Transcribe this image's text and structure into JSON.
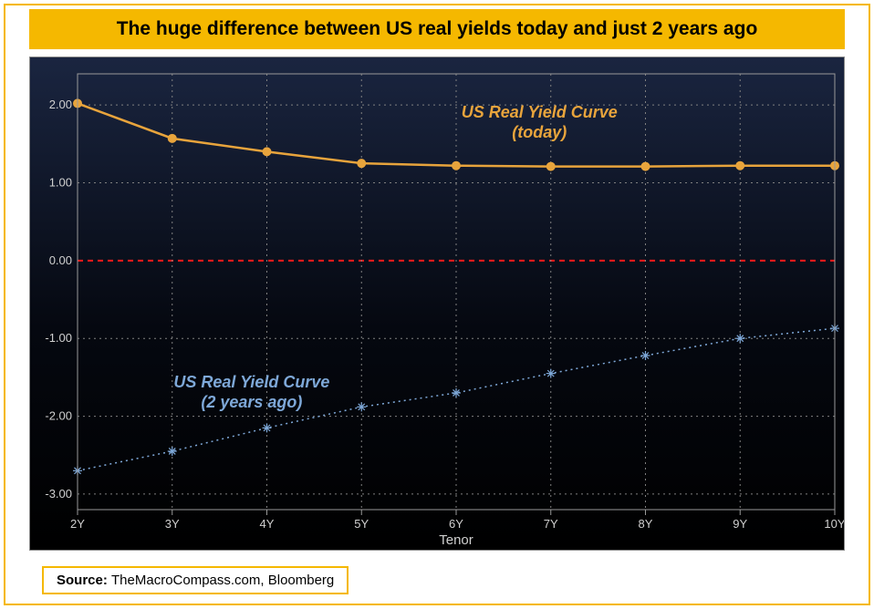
{
  "title": "The huge difference between US real yields today and just 2 years ago",
  "source": {
    "label": "Source: ",
    "text": "TheMacroCompass.com, Bloomberg"
  },
  "chart": {
    "type": "line",
    "background_gradient_top": "#1a2540",
    "background_gradient_bottom": "#000000",
    "grid_color": "#808080",
    "grid_dash": "2 4",
    "zero_line_color": "#ff1a1a",
    "zero_line_dash": "6 5",
    "tick_color": "#d0d0d0",
    "tick_fontsize": 13,
    "xlabel": "Tenor",
    "xlabel_fontsize": 15,
    "xticks": [
      "2Y",
      "3Y",
      "4Y",
      "5Y",
      "6Y",
      "7Y",
      "8Y",
      "9Y",
      "10Y"
    ],
    "yticks": [
      -3.0,
      -2.0,
      -1.0,
      0.0,
      1.0,
      2.0
    ],
    "ylim": [
      -3.2,
      2.4
    ],
    "yformat_decimals": 2,
    "series": [
      {
        "key": "today",
        "label_lines": [
          "US Real Yield Curve",
          "(today)"
        ],
        "color": "#e8a43c",
        "line_width": 2.5,
        "line_dash": "none",
        "marker": "circle",
        "marker_size": 4.5,
        "values": [
          2.02,
          1.57,
          1.4,
          1.25,
          1.22,
          1.21,
          1.21,
          1.22,
          1.22
        ],
        "annot_xy": [
          0.61,
          0.1
        ]
      },
      {
        "key": "past",
        "label_lines": [
          "US Real Yield Curve",
          "(2 years ago)"
        ],
        "color": "#7ea8d8",
        "line_width": 1.5,
        "line_dash": "2 4",
        "marker": "asterisk",
        "marker_size": 5,
        "values": [
          -2.7,
          -2.45,
          -2.15,
          -1.88,
          -1.7,
          -1.45,
          -1.22,
          -1.0,
          -0.87
        ],
        "annot_xy": [
          0.23,
          0.72
        ]
      }
    ]
  }
}
